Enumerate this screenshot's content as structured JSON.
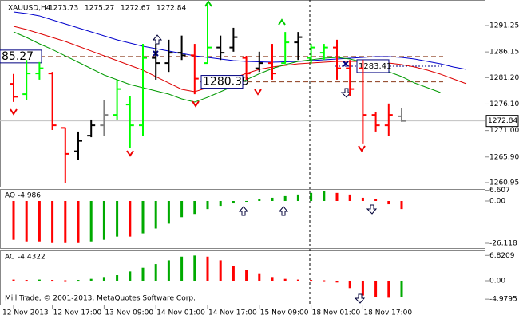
{
  "chart_data": [
    {
      "type": "ohlc",
      "title": "XAUUSD,H4",
      "categories": [
        "12 Nov 2013",
        null,
        null,
        "12 Nov 17:00",
        null,
        null,
        null,
        "13 Nov 09:00",
        null,
        null,
        null,
        "14 Nov 01:00",
        null,
        null,
        null,
        "14 Nov 17:00",
        null,
        null,
        null,
        "15 Nov 09:00",
        null,
        null,
        null,
        "18 Nov 01:00",
        null,
        null,
        null,
        "18 Nov 17:00",
        null,
        null,
        null,
        null,
        null,
        null,
        null,
        null
      ],
      "open": [
        1280,
        1278,
        1282,
        1282,
        1271.5,
        1267,
        1270,
        1272,
        1274,
        1276,
        1272,
        1285,
        1284,
        1286,
        1285.5,
        1284,
        1287,
        1287,
        1285,
        1283,
        1284,
        1284,
        1288,
        1285,
        1286,
        1287,
        1283,
        1283,
        1274,
        1272,
        1273.73,
        null,
        null,
        null,
        null,
        null
      ],
      "high": [
        1281.9,
        1284.6,
        1284.2,
        1282.3,
        1271.6,
        1270.8,
        1273.1,
        1276.9,
        1280.8,
        1277.7,
        1287.7,
        1287.7,
        1288.5,
        1289.3,
        1287.7,
        1295.4,
        1289.3,
        1290.8,
        1285.4,
        1286.2,
        1287.7,
        1290,
        1290,
        1287.7,
        1287.7,
        1288.5,
        1284.6,
        1284.6,
        1274.6,
        1276.2,
        1275.27,
        null,
        null,
        null,
        null,
        null
      ],
      "low": [
        1276.5,
        1276.9,
        1280.8,
        1271.1,
        1260.9,
        1265.4,
        1269.7,
        1270,
        1273.1,
        1267.7,
        1270,
        1280.8,
        1282.3,
        1284.6,
        1278,
        1283.9,
        1284.6,
        1286.2,
        1280.8,
        1282.3,
        1280.8,
        1283.9,
        1284.6,
        1283.9,
        1284.6,
        1280.8,
        1277.7,
        1268.5,
        1270.8,
        1270,
        1272.67,
        null,
        null,
        null,
        null,
        null
      ],
      "close": [
        1277.5,
        1282,
        1283,
        1272,
        1266.5,
        1269,
        1272,
        1274,
        1279,
        1272,
        1285,
        1284,
        1286,
        1285.5,
        1281,
        1287,
        1286,
        1289,
        1282,
        1284,
        1282,
        1288,
        1289,
        1287,
        1287,
        1283,
        1279,
        1274,
        1272,
        1274,
        1272.84,
        null,
        null,
        null,
        null,
        null
      ],
      "bar_colors": [
        "#ff0000",
        "#00ff00",
        "#00ff00",
        "#ff0000",
        "#ff0000",
        "#000000",
        "#000000",
        "#808080",
        "#00ff00",
        "#00ff00",
        "#00ff00",
        "#000000",
        "#000000",
        "#000000",
        "#ff0000",
        "#00ff00",
        "#000000",
        "#000000",
        "#ff0000",
        "#000000",
        "#ff0000",
        "#00ff00",
        "#000000",
        "#00ff00",
        "#00ff00",
        "#ff0000",
        "#ff0000",
        "#ff0000",
        "#ff0000",
        "#ff0000",
        "#808080",
        null,
        null,
        null,
        null,
        null
      ],
      "series": [
        {
          "color": "#0000cc",
          "values": [
            1293.87,
            1293.56,
            1293.1,
            1292.33,
            1291.56,
            1290.79,
            1290.02,
            1289.25,
            1288.48,
            1287.87,
            1287.25,
            1286.79,
            1286.33,
            1285.87,
            1285.41,
            1285.1,
            1284.79,
            1284.48,
            1284.33,
            1284.25,
            1284.17,
            1284.25,
            1284.33,
            1284.48,
            1284.63,
            1284.79,
            1284.94,
            1285.1,
            1285.25,
            1285.25,
            1285.1,
            1284.79,
            1284.33,
            1283.87,
            1283.25,
            1282.79
          ]
        },
        {
          "color": "#dd0000",
          "values": [
            1291.1,
            1290.48,
            1289.71,
            1288.94,
            1288.17,
            1287.25,
            1286.33,
            1285.4,
            1284.48,
            1283.56,
            1282.63,
            1281.4,
            1280.17,
            1278.94,
            1278.48,
            1279.25,
            1280.17,
            1281.1,
            1282.02,
            1282.79,
            1283.25,
            1283.56,
            1283.87,
            1284.02,
            1284.17,
            1284.33,
            1284.33,
            1284.33,
            1284.17,
            1284.02,
            1283.71,
            1283.25,
            1282.63,
            1281.87,
            1280.94,
            1280.02
          ]
        },
        {
          "color": "#009900",
          "values": [
            1290.02,
            1288.94,
            1287.71,
            1286.63,
            1285.4,
            1284.17,
            1282.94,
            1281.71,
            1280.79,
            1279.87,
            1279.25,
            1278.63,
            1278.02,
            1277.1,
            1276.48,
            1277.4,
            1278.48,
            1279.56,
            1280.79,
            1281.94,
            1282.94,
            1283.71,
            1284.33,
            1284.63,
            1284.94,
            1285.1,
            1284.79,
            1284.17,
            1283.25,
            1282.33,
            1281.4,
            1280.17,
            1279.25,
            1278.33,
            null,
            null
          ]
        }
      ],
      "levels": [
        {
          "value": 1285.27,
          "label": "85.27"
        },
        {
          "value": 1280.39,
          "label": "1280.39"
        },
        {
          "value": 1283.41,
          "label": "1283.41"
        }
      ],
      "ylim": [
        1260.02,
        1296.17
      ],
      "yticks": [
        1291.25,
        1286.15,
        {
          "value": 1281.2,
          "label": "1281.20"
        },
        {
          "value": 1276.1,
          "label": "1276.10"
        },
        {
          "value": 1271,
          "label": "1271.00"
        },
        {
          "value": 1265.9,
          "label": "1265.90"
        },
        1260.95
      ]
    },
    {
      "type": "bar",
      "title": "AO",
      "values": [
        -24,
        -25,
        -25,
        -26,
        -26,
        -26,
        -25,
        -24,
        -22,
        -22,
        -20,
        -17,
        -14,
        -10,
        -8,
        -5,
        -3,
        -1.5,
        -0.5,
        1,
        2,
        3,
        4,
        5,
        6,
        5,
        4,
        2,
        1,
        -2,
        -4.986,
        null,
        null,
        null,
        null,
        null
      ],
      "up_color": "#00aa00",
      "down_color": "#ff0000",
      "ylim": [
        -29.57,
        7.39
      ],
      "yticks": [
        6.607,
        {
          "value": 0,
          "label": "0.00"
        },
        -26.118
      ]
    },
    {
      "type": "bar",
      "title": "AC",
      "values": [
        0.3,
        0.2,
        0.3,
        0.2,
        0.1,
        0.2,
        0.5,
        1,
        1.5,
        2.5,
        3.5,
        4.5,
        5.5,
        6.5,
        6.8,
        6.5,
        5.5,
        4,
        3,
        2,
        1,
        0.5,
        0.3,
        0.2,
        0.1,
        -0.5,
        -2,
        -4,
        -4.5,
        -4.6,
        -4.4322,
        null,
        null,
        null,
        null,
        null
      ],
      "up_color": "#00aa00",
      "down_color": "#ff0000",
      "ylim": [
        -6.67,
        8.17
      ],
      "yticks": [
        6.8209,
        {
          "value": 0,
          "label": "0.00"
        },
        -4.9795
      ]
    }
  ],
  "footer": "Mill Trade, © 2001-2013, MetaQuotes Software Corp."
}
